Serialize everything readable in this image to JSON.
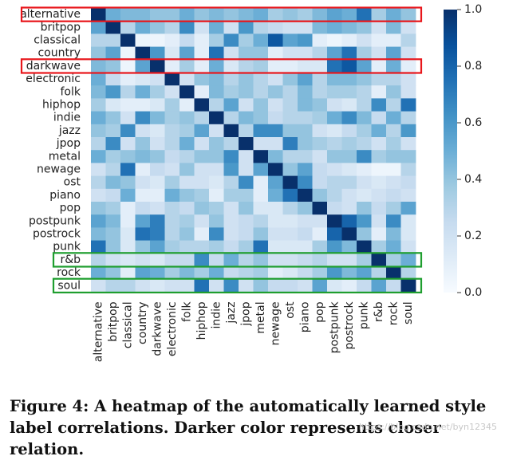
{
  "caption": "Figure 4: A heatmap of the automatically learned style label correlations. Darker color represents closer relation.",
  "watermark": "https://blog.csdn.net/byn12345",
  "colors": {
    "low": "#f7fbff",
    "high": "#08306b",
    "highlight_red": "#e8161b",
    "highlight_green": "#1f9e2f"
  },
  "chart_data": {
    "type": "heatmap",
    "title": "",
    "xlabel": "",
    "ylabel": "",
    "labels": [
      "alternative",
      "britpop",
      "classical",
      "country",
      "darkwave",
      "electronic",
      "folk",
      "hiphop",
      "indie",
      "jazz",
      "jpop",
      "metal",
      "newage",
      "ost",
      "piano",
      "pop",
      "postpunk",
      "postrock",
      "punk",
      "r&b",
      "rock",
      "soul"
    ],
    "values": [
      [
        1.0,
        0.5,
        0.45,
        0.45,
        0.4,
        0.4,
        0.5,
        0.4,
        0.45,
        0.4,
        0.45,
        0.5,
        0.35,
        0.4,
        0.35,
        0.45,
        0.55,
        0.5,
        0.75,
        0.35,
        0.5,
        0.4
      ],
      [
        0.55,
        1.0,
        0.3,
        0.5,
        0.4,
        0.3,
        0.65,
        0.2,
        0.5,
        0.2,
        0.6,
        0.3,
        0.25,
        0.2,
        0.2,
        0.45,
        0.5,
        0.45,
        0.4,
        0.2,
        0.45,
        0.2
      ],
      [
        0.3,
        0.3,
        1.0,
        0.05,
        0.05,
        0.1,
        0.25,
        0.1,
        0.35,
        0.65,
        0.35,
        0.5,
        0.85,
        0.55,
        0.6,
        0.1,
        0.05,
        0.1,
        0.2,
        0.1,
        0.1,
        0.3
      ],
      [
        0.4,
        0.55,
        0.05,
        1.0,
        0.6,
        0.15,
        0.55,
        0.1,
        0.75,
        0.2,
        0.4,
        0.4,
        0.1,
        0.2,
        0.2,
        0.3,
        0.55,
        0.75,
        0.35,
        0.2,
        0.55,
        0.2
      ],
      [
        0.45,
        0.4,
        0.05,
        0.55,
        1.0,
        0.1,
        0.35,
        0.1,
        0.5,
        0.15,
        0.3,
        0.35,
        0.1,
        0.1,
        0.15,
        0.15,
        0.75,
        0.85,
        0.55,
        0.1,
        0.5,
        0.1
      ],
      [
        0.5,
        0.25,
        0.1,
        0.15,
        0.2,
        1.0,
        0.2,
        0.4,
        0.45,
        0.3,
        0.4,
        0.3,
        0.2,
        0.4,
        0.55,
        0.3,
        0.45,
        0.45,
        0.4,
        0.3,
        0.3,
        0.2
      ],
      [
        0.45,
        0.6,
        0.3,
        0.5,
        0.35,
        0.2,
        1.0,
        0.1,
        0.45,
        0.35,
        0.4,
        0.3,
        0.4,
        0.3,
        0.45,
        0.3,
        0.35,
        0.35,
        0.3,
        0.1,
        0.4,
        0.2
      ],
      [
        0.35,
        0.15,
        0.1,
        0.1,
        0.15,
        0.35,
        0.1,
        1.0,
        0.3,
        0.55,
        0.2,
        0.4,
        0.2,
        0.3,
        0.45,
        0.4,
        0.2,
        0.15,
        0.3,
        0.65,
        0.3,
        0.75
      ],
      [
        0.5,
        0.4,
        0.2,
        0.65,
        0.45,
        0.35,
        0.4,
        0.3,
        1.0,
        0.3,
        0.45,
        0.4,
        0.25,
        0.3,
        0.3,
        0.35,
        0.5,
        0.65,
        0.45,
        0.25,
        0.5,
        0.3
      ],
      [
        0.4,
        0.35,
        0.65,
        0.2,
        0.15,
        0.3,
        0.35,
        0.55,
        0.2,
        1.0,
        0.3,
        0.65,
        0.65,
        0.4,
        0.4,
        0.2,
        0.15,
        0.25,
        0.35,
        0.5,
        0.3,
        0.6
      ],
      [
        0.3,
        0.65,
        0.2,
        0.4,
        0.2,
        0.3,
        0.5,
        0.2,
        0.4,
        0.3,
        1.0,
        0.2,
        0.2,
        0.7,
        0.4,
        0.35,
        0.3,
        0.35,
        0.3,
        0.2,
        0.35,
        0.2
      ],
      [
        0.5,
        0.35,
        0.4,
        0.45,
        0.4,
        0.25,
        0.3,
        0.4,
        0.4,
        0.65,
        0.2,
        1.0,
        0.45,
        0.3,
        0.3,
        0.2,
        0.4,
        0.4,
        0.65,
        0.35,
        0.4,
        0.4
      ],
      [
        0.2,
        0.3,
        0.75,
        0.1,
        0.25,
        0.2,
        0.4,
        0.2,
        0.2,
        0.6,
        0.2,
        0.55,
        1.0,
        0.4,
        0.55,
        0.25,
        0.2,
        0.15,
        0.1,
        0.05,
        0.05,
        0.3
      ],
      [
        0.3,
        0.45,
        0.4,
        0.2,
        0.15,
        0.35,
        0.2,
        0.2,
        0.15,
        0.3,
        0.65,
        0.1,
        0.55,
        1.0,
        0.65,
        0.25,
        0.3,
        0.3,
        0.2,
        0.15,
        0.2,
        0.25
      ],
      [
        0.2,
        0.25,
        0.5,
        0.1,
        0.1,
        0.5,
        0.4,
        0.35,
        0.1,
        0.35,
        0.35,
        0.1,
        0.5,
        0.75,
        1.0,
        0.4,
        0.3,
        0.2,
        0.15,
        0.2,
        0.25,
        0.2
      ],
      [
        0.4,
        0.35,
        0.1,
        0.25,
        0.2,
        0.3,
        0.25,
        0.4,
        0.35,
        0.2,
        0.4,
        0.15,
        0.15,
        0.3,
        0.4,
        1.0,
        0.25,
        0.2,
        0.4,
        0.25,
        0.35,
        0.55
      ],
      [
        0.55,
        0.45,
        0.1,
        0.55,
        0.7,
        0.3,
        0.35,
        0.2,
        0.4,
        0.2,
        0.25,
        0.3,
        0.15,
        0.15,
        0.2,
        0.2,
        1.0,
        0.8,
        0.6,
        0.2,
        0.65,
        0.15
      ],
      [
        0.45,
        0.4,
        0.15,
        0.75,
        0.7,
        0.3,
        0.4,
        0.1,
        0.65,
        0.2,
        0.25,
        0.4,
        0.2,
        0.2,
        0.25,
        0.1,
        0.8,
        1.0,
        0.4,
        0.1,
        0.45,
        0.15
      ],
      [
        0.75,
        0.4,
        0.15,
        0.4,
        0.55,
        0.35,
        0.3,
        0.3,
        0.35,
        0.25,
        0.35,
        0.75,
        0.15,
        0.15,
        0.15,
        0.35,
        0.6,
        0.45,
        1.0,
        0.35,
        0.5,
        0.2
      ],
      [
        0.3,
        0.2,
        0.15,
        0.2,
        0.15,
        0.25,
        0.25,
        0.65,
        0.25,
        0.5,
        0.3,
        0.4,
        0.2,
        0.2,
        0.25,
        0.3,
        0.2,
        0.2,
        0.35,
        1.0,
        0.35,
        0.5
      ],
      [
        0.5,
        0.4,
        0.1,
        0.55,
        0.5,
        0.35,
        0.45,
        0.35,
        0.5,
        0.25,
        0.3,
        0.35,
        0.1,
        0.15,
        0.25,
        0.35,
        0.6,
        0.45,
        0.55,
        0.3,
        1.0,
        0.3
      ],
      [
        0.2,
        0.3,
        0.3,
        0.2,
        0.15,
        0.2,
        0.2,
        0.75,
        0.2,
        0.65,
        0.2,
        0.4,
        0.25,
        0.25,
        0.2,
        0.55,
        0.15,
        0.1,
        0.25,
        0.55,
        0.25,
        1.0
      ]
    ],
    "colorbar": {
      "min": 0.0,
      "max": 1.0,
      "ticks": [
        "0.0",
        "0.2",
        "0.4",
        "0.6",
        "0.8",
        "1.0"
      ]
    },
    "highlighted_rows": [
      {
        "label": "alternative",
        "color": "red"
      },
      {
        "label": "darkwave",
        "color": "red"
      },
      {
        "label": "r&b",
        "color": "green"
      },
      {
        "label": "soul",
        "color": "green"
      }
    ]
  }
}
